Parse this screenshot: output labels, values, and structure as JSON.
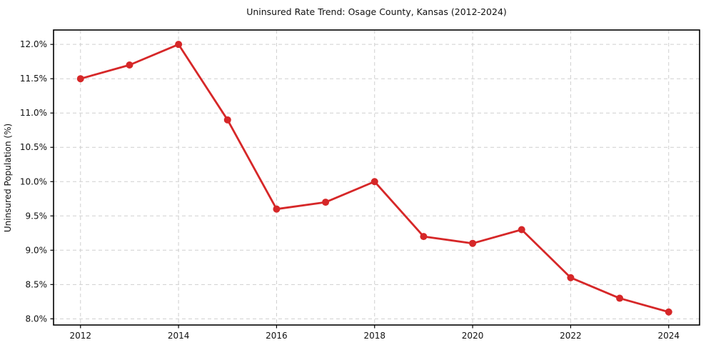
{
  "figure": {
    "background_color": "#ffffff",
    "frame_color": "#000000",
    "text_color": "#111111"
  },
  "chart_data": {
    "type": "line",
    "title": "Uninsured Rate Trend: Osage County, Kansas (2012-2024)",
    "xlabel": "",
    "ylabel": "Uninsured Population (%)",
    "x": [
      2012,
      2013,
      2014,
      2015,
      2016,
      2017,
      2018,
      2019,
      2020,
      2021,
      2022,
      2023,
      2024
    ],
    "values": [
      11.5,
      11.7,
      12.0,
      10.9,
      9.6,
      9.7,
      10.0,
      9.2,
      9.1,
      9.3,
      8.6,
      8.3,
      8.1
    ],
    "xlim": [
      2011.45,
      2024.63
    ],
    "ylim": [
      7.91,
      12.21
    ],
    "xticks": {
      "values": [
        2012,
        2014,
        2016,
        2018,
        2020,
        2022,
        2024
      ],
      "labels": [
        "2012",
        "2014",
        "2016",
        "2018",
        "2020",
        "2022",
        "2024"
      ]
    },
    "yticks": {
      "values": [
        8.0,
        8.5,
        9.0,
        9.5,
        10.0,
        10.5,
        11.0,
        11.5,
        12.0
      ],
      "labels": [
        "8.0%",
        "8.5%",
        "9.0%",
        "9.5%",
        "10.0%",
        "10.5%",
        "11.0%",
        "11.5%",
        "12.0%"
      ]
    },
    "grid": true,
    "grid_style": "dashed",
    "grid_color": "#cfcfcf",
    "legend_position": "none",
    "line_color": "#d62728",
    "marker": "circle",
    "marker_size": 5,
    "line_width": 2.8
  }
}
